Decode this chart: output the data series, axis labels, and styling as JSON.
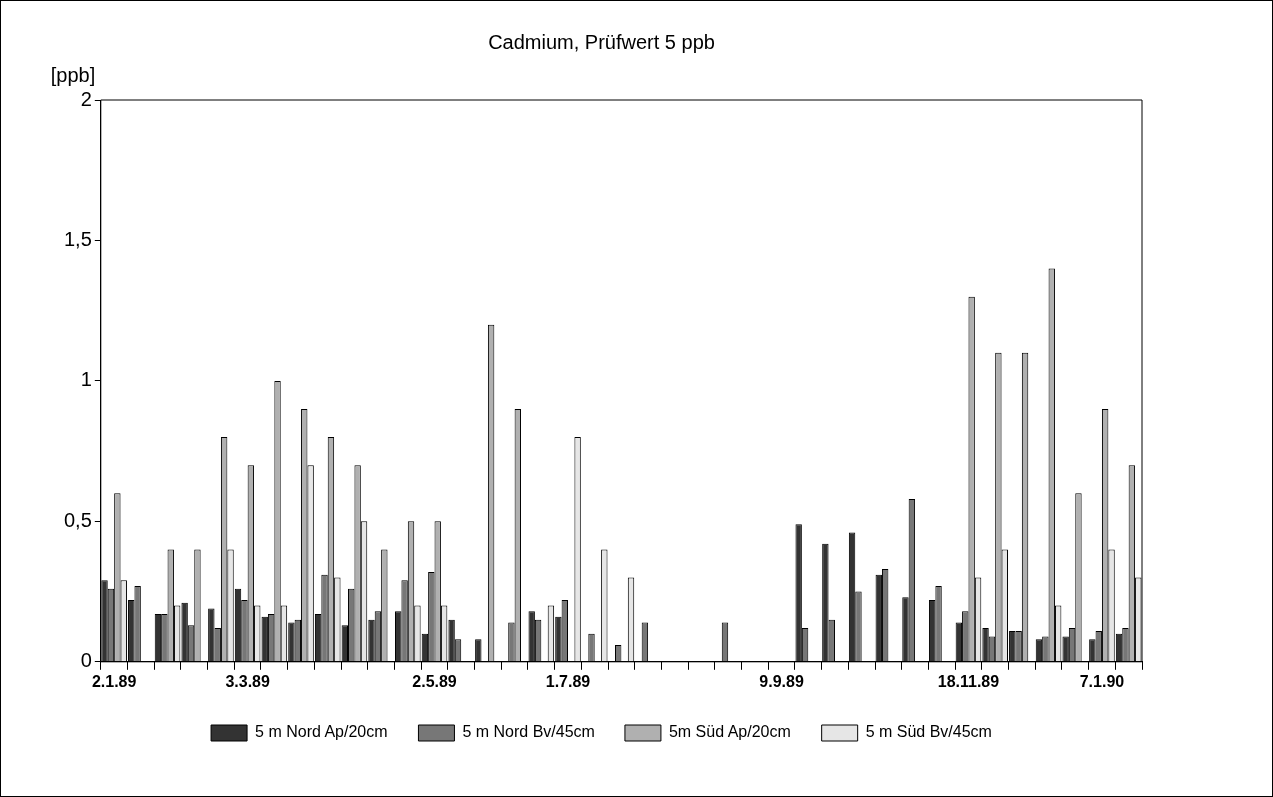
{
  "chart_data": {
    "type": "bar",
    "title": "Cadmium, Prüfwert 5 ppb",
    "ylabel": "[ppb]",
    "categories": [
      "2.1.89",
      null,
      null,
      null,
      null,
      "3.3.89",
      null,
      null,
      null,
      null,
      null,
      null,
      "2.5.89",
      null,
      null,
      null,
      null,
      "1.7.89",
      null,
      null,
      null,
      null,
      null,
      null,
      null,
      "9.9.89",
      null,
      null,
      null,
      null,
      null,
      null,
      "18.11.89",
      null,
      null,
      null,
      null,
      "7.1.90",
      null
    ],
    "series": [
      {
        "name": "5 m Nord Ap/20cm",
        "color": "#333333",
        "values": [
          0.29,
          0.22,
          0.17,
          0.21,
          0.19,
          0.26,
          0.16,
          0.14,
          0.17,
          0.13,
          0.15,
          0.18,
          0.1,
          0.15,
          0.08,
          null,
          0.18,
          0.16,
          null,
          null,
          null,
          null,
          null,
          null,
          null,
          null,
          0.49,
          0.42,
          0.46,
          0.31,
          0.23,
          0.22,
          0.14,
          0.12,
          0.11,
          0.08,
          0.09,
          0.08,
          0.1
        ]
      },
      {
        "name": "5 m Nord Bv/45cm",
        "color": "#777777",
        "values": [
          0.26,
          0.27,
          0.17,
          0.13,
          0.12,
          0.22,
          0.17,
          0.15,
          0.31,
          0.26,
          0.18,
          0.29,
          0.32,
          0.08,
          null,
          0.14,
          0.15,
          0.22,
          0.1,
          0.06,
          0.14,
          null,
          null,
          0.14,
          null,
          null,
          0.12,
          0.15,
          0.25,
          0.33,
          0.58,
          0.27,
          0.18,
          0.09,
          0.11,
          0.09,
          0.12,
          0.11,
          0.12
        ]
      },
      {
        "name": "5m Süd Ap/20cm",
        "color": "#b0b0b0",
        "values": [
          0.6,
          null,
          0.4,
          0.4,
          0.8,
          0.7,
          1.0,
          0.9,
          0.8,
          0.7,
          0.4,
          0.5,
          0.5,
          null,
          1.2,
          0.9,
          null,
          null,
          null,
          null,
          null,
          null,
          null,
          null,
          null,
          null,
          null,
          null,
          null,
          null,
          null,
          null,
          1.3,
          1.1,
          1.1,
          1.4,
          0.6,
          0.9,
          0.7
        ]
      },
      {
        "name": "5 m Süd Bv/45cm",
        "color": "#e6e6e6",
        "values": [
          0.29,
          null,
          0.2,
          null,
          0.4,
          0.2,
          0.2,
          0.7,
          0.3,
          0.5,
          null,
          0.2,
          0.2,
          null,
          null,
          null,
          0.2,
          0.8,
          0.4,
          0.3,
          null,
          null,
          null,
          null,
          null,
          null,
          null,
          null,
          null,
          null,
          null,
          null,
          0.3,
          0.4,
          null,
          0.2,
          null,
          0.4,
          0.3
        ]
      }
    ],
    "ylim": [
      0,
      2
    ],
    "yticks": [
      0,
      {
        "value": 0.5,
        "label": "0,5"
      },
      1,
      {
        "value": 1.5,
        "label": "1,5"
      },
      2
    ],
    "grid": false,
    "legend": "bottom"
  }
}
